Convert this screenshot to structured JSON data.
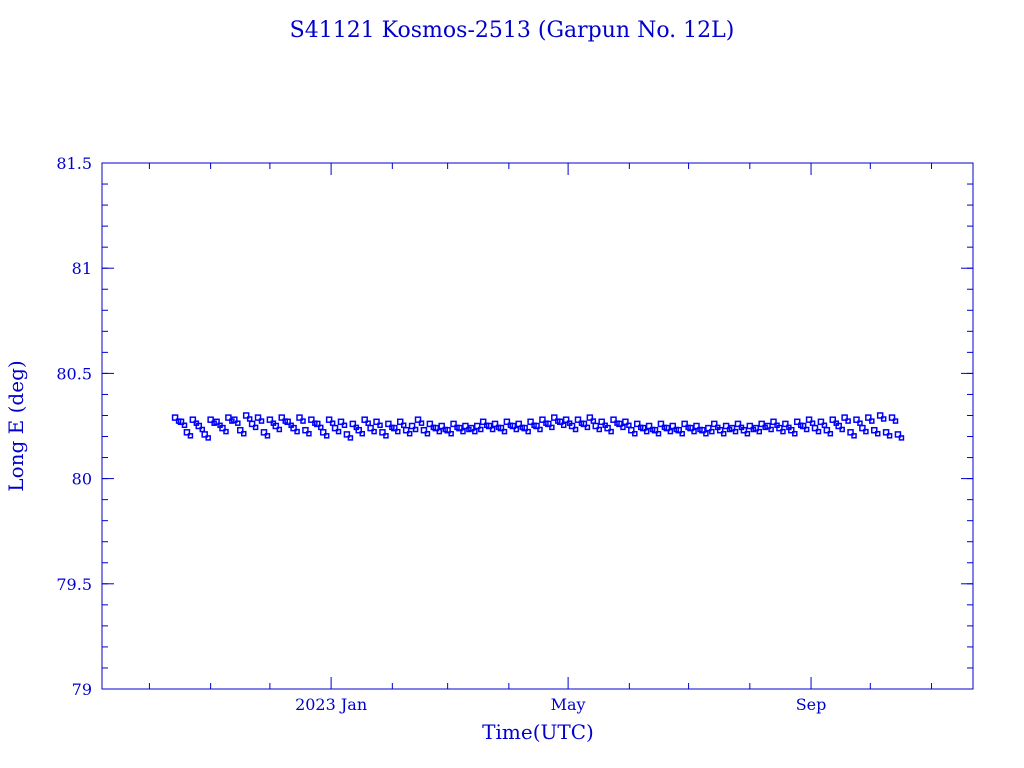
{
  "chart_data": {
    "type": "scatter",
    "title": "S41121 Kosmos-2513  (Garpun No. 12L)",
    "xlabel": "Time(UTC)",
    "ylabel": "Long E (deg)",
    "x_units": "days since 2023-01-01",
    "xlim": [
      -116,
      325
    ],
    "ylim": [
      79,
      81.5
    ],
    "y_major_ticks": [
      79,
      79.5,
      80,
      80.5,
      81,
      81.5
    ],
    "y_tick_labels": [
      "79",
      "79.5",
      "80",
      "80.5",
      "81",
      "81.5"
    ],
    "y_minor_step": 0.1,
    "x_major_ticks": [
      0,
      120,
      243
    ],
    "x_tick_labels": [
      "2023 Jan",
      "May",
      "Sep"
    ],
    "x_minor_ticks": [
      -92,
      -61,
      -31,
      31,
      59,
      90,
      151,
      181,
      212,
      273,
      304
    ],
    "grid": false,
    "marker": "open-square",
    "color": "#0000ff",
    "series": [
      {
        "name": "Long E",
        "x": [
          -79,
          -76,
          -73,
          -70,
          -67,
          -64,
          -61,
          -58,
          -55,
          -52,
          -49,
          -46,
          -43,
          -40,
          -37,
          -34,
          -31,
          -28,
          -25,
          -22,
          -19,
          -16,
          -13,
          -10,
          -7,
          -4,
          -1,
          2,
          5,
          8,
          11,
          14,
          17,
          20,
          23,
          26,
          29,
          32,
          35,
          38,
          41,
          44,
          47,
          50,
          53,
          56,
          59,
          62,
          65,
          68,
          71,
          74,
          77,
          80,
          83,
          86,
          89,
          92,
          95,
          98,
          101,
          104,
          107,
          110,
          113,
          116,
          119,
          122,
          125,
          128,
          131,
          134,
          137,
          140,
          143,
          146,
          149,
          152,
          155,
          158,
          161,
          164,
          167,
          170,
          173,
          176,
          179,
          182,
          185,
          188,
          191,
          194,
          197,
          200,
          203,
          206,
          209,
          212,
          215,
          218,
          221,
          224,
          227,
          230,
          233,
          236,
          239,
          242,
          245,
          248,
          251,
          254,
          257,
          260,
          263,
          266,
          269,
          272,
          275,
          278,
          281,
          284,
          287
        ],
        "y": [
          80.29,
          80.27,
          80.22,
          80.28,
          80.25,
          80.21,
          80.28,
          80.27,
          80.24,
          80.29,
          80.28,
          80.23,
          80.3,
          80.26,
          80.29,
          80.22,
          80.28,
          80.25,
          80.29,
          80.27,
          80.24,
          80.29,
          80.23,
          80.28,
          80.26,
          80.22,
          80.28,
          80.24,
          80.27,
          80.21,
          80.26,
          80.23,
          80.28,
          80.24,
          80.27,
          80.22,
          80.26,
          80.24,
          80.27,
          80.23,
          80.25,
          80.28,
          80.23,
          80.26,
          80.24,
          80.25,
          80.23,
          80.26,
          80.24,
          80.25,
          80.24,
          80.25,
          80.27,
          80.25,
          80.26,
          80.24,
          80.27,
          80.25,
          80.26,
          80.24,
          80.27,
          80.25,
          80.28,
          80.26,
          80.29,
          80.27,
          80.28,
          80.25,
          80.28,
          80.26,
          80.29,
          80.25,
          80.27,
          80.24,
          80.28,
          80.26,
          80.27,
          80.23,
          80.26,
          80.24,
          80.25,
          80.23,
          80.26,
          80.24,
          80.25,
          80.23,
          80.26,
          80.24,
          80.25,
          80.23,
          80.24,
          80.26,
          80.23,
          80.25,
          80.24,
          80.26,
          80.23,
          80.25,
          80.24,
          80.26,
          80.25,
          80.27,
          80.24,
          80.26,
          80.23,
          80.27,
          80.25,
          80.28,
          80.24,
          80.27,
          80.23,
          80.28,
          80.25,
          80.29,
          80.22,
          80.28,
          80.24,
          80.29,
          80.23,
          80.3,
          80.22,
          80.29,
          80.21
        ]
      }
    ]
  }
}
